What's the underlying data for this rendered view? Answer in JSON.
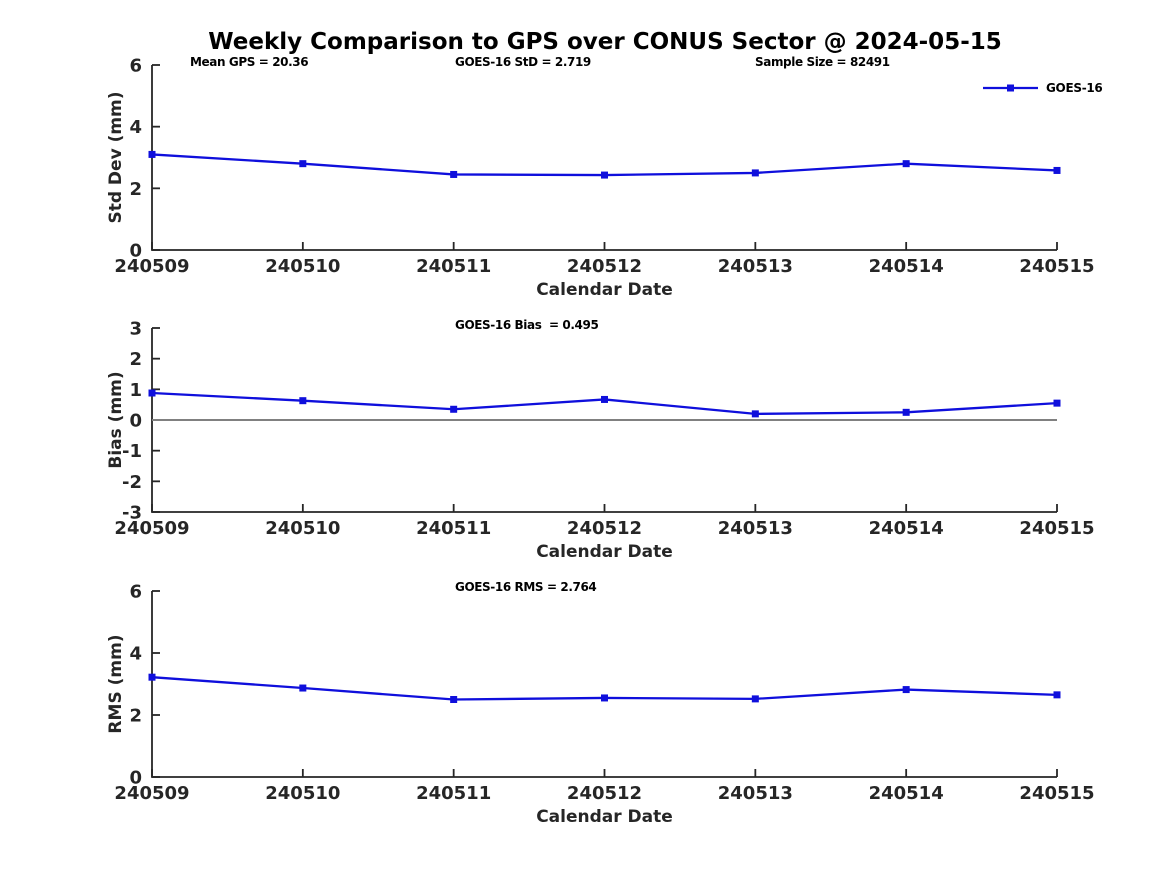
{
  "title": "Weekly Comparison to GPS over CONUS Sector @ 2024-05-15",
  "colors": {
    "line": "#0f0fdc",
    "zero_line": "#808080",
    "axis": "#262626",
    "tick_text": "#262626",
    "annotation_text": "#000000"
  },
  "legend": {
    "label": "GOES-16",
    "position": "top-right"
  },
  "chart_data": [
    {
      "type": "line",
      "name": "std-dev-panel",
      "x": [
        "240509",
        "240510",
        "240511",
        "240512",
        "240513",
        "240514",
        "240515"
      ],
      "series": [
        {
          "name": "GOES-16",
          "values": [
            3.1,
            2.8,
            2.45,
            2.43,
            2.5,
            2.8,
            2.58
          ]
        }
      ],
      "xlabel": "Calendar Date",
      "ylabel": "Std Dev (mm)",
      "ylim": [
        0,
        6
      ],
      "yticks": [
        0,
        2,
        4,
        6
      ],
      "grid": false,
      "zero_line": false,
      "annotations": [
        "Mean GPS = 20.36",
        "GOES-16 StD = 2.719",
        "Sample Size = 82491"
      ]
    },
    {
      "type": "line",
      "name": "bias-panel",
      "x": [
        "240509",
        "240510",
        "240511",
        "240512",
        "240513",
        "240514",
        "240515"
      ],
      "series": [
        {
          "name": "GOES-16",
          "values": [
            0.88,
            0.63,
            0.35,
            0.67,
            0.2,
            0.25,
            0.55
          ]
        }
      ],
      "xlabel": "Calendar Date",
      "ylabel": "Bias (mm)",
      "ylim": [
        -3,
        3
      ],
      "yticks": [
        -3,
        -2,
        -1,
        0,
        1,
        2,
        3
      ],
      "grid": false,
      "zero_line": true,
      "annotations": [
        "GOES-16 Bias  = 0.495"
      ]
    },
    {
      "type": "line",
      "name": "rms-panel",
      "x": [
        "240509",
        "240510",
        "240511",
        "240512",
        "240513",
        "240514",
        "240515"
      ],
      "series": [
        {
          "name": "GOES-16",
          "values": [
            3.22,
            2.87,
            2.5,
            2.55,
            2.52,
            2.82,
            2.65
          ]
        }
      ],
      "xlabel": "Calendar Date",
      "ylabel": "RMS (mm)",
      "ylim": [
        0,
        6
      ],
      "yticks": [
        0,
        2,
        4,
        6
      ],
      "grid": false,
      "zero_line": false,
      "annotations": [
        "GOES-16 RMS = 2.764"
      ]
    }
  ]
}
